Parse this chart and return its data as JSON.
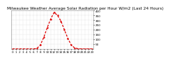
{
  "title": "Milwaukee Weather Average Solar Radiation per Hour W/m2 (Last 24 Hours)",
  "background_color": "#ffffff",
  "plot_bg_color": "#ffffff",
  "grid_color": "#aaaaaa",
  "line_color": "#dd0000",
  "hours": [
    0,
    1,
    2,
    3,
    4,
    5,
    6,
    7,
    8,
    9,
    10,
    11,
    12,
    13,
    14,
    15,
    16,
    17,
    18,
    19,
    20,
    21,
    22,
    23
  ],
  "values": [
    0,
    0,
    0,
    0,
    0,
    0,
    0,
    5,
    40,
    120,
    220,
    310,
    380,
    350,
    290,
    200,
    110,
    40,
    10,
    2,
    0,
    0,
    0,
    0
  ],
  "ylim": [
    0,
    400
  ],
  "yticks": [
    50,
    100,
    150,
    200,
    250,
    300,
    350,
    400
  ],
  "ytick_labels": [
    "50",
    "100",
    "150",
    "200",
    "250",
    "300",
    "350",
    "400"
  ],
  "title_fontsize": 4.2,
  "tick_fontsize": 3.0,
  "line_width": 0.9,
  "marker_size": 1.5
}
